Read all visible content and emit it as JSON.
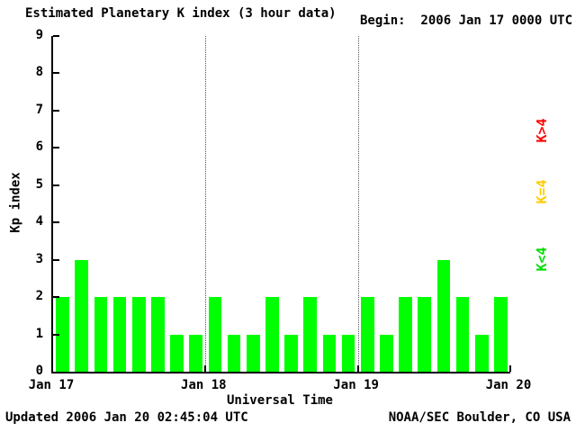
{
  "header": {
    "title": "Estimated Planetary K index (3 hour data)",
    "begin_label": "Begin:  2006 Jan 17 0000 UTC"
  },
  "footer": {
    "updated": "Updated 2006 Jan 20 02:45:04 UTC",
    "source": "NOAA/SEC Boulder, CO USA"
  },
  "legend": [
    {
      "label": "K>4",
      "color": "#ff0000"
    },
    {
      "label": "K=4",
      "color": "#ffcc00"
    },
    {
      "label": "K<4",
      "color": "#00dd00"
    }
  ],
  "chart_data": {
    "type": "bar",
    "title": "Estimated Planetary K index (3 hour data)",
    "xlabel": "Universal Time",
    "ylabel": "Kp index",
    "ylim": [
      0,
      9
    ],
    "y_ticks": [
      0,
      1,
      2,
      3,
      4,
      5,
      6,
      7,
      8,
      9
    ],
    "x_tick_labels": [
      "Jan 17",
      "Jan 18",
      "Jan 19",
      "Jan 20"
    ],
    "bars_per_day": 8,
    "bar_color": "#00ff00",
    "begin": "2006 Jan 17 0000 UTC",
    "updated": "2006 Jan 20 02:45:04 UTC",
    "values": [
      2,
      3,
      2,
      2,
      2,
      2,
      1,
      1,
      2,
      1,
      1,
      2,
      1,
      2,
      1,
      1,
      2,
      1,
      2,
      2,
      3,
      2,
      1,
      2
    ]
  }
}
